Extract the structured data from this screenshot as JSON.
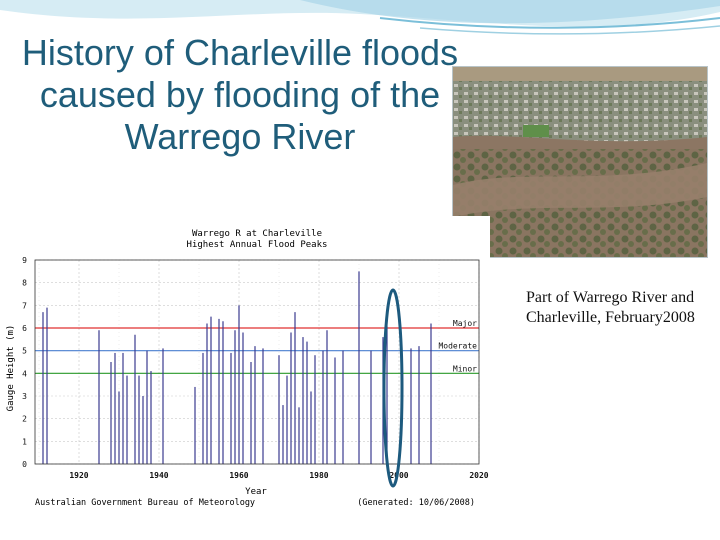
{
  "slide": {
    "title": "History of Charleville floods caused by flooding of the Warrego River",
    "caption": "Part of Warrego River and Charleville, February2008"
  },
  "colors": {
    "title": "#1f5d7a",
    "bars": "#3b3b8f",
    "major": "#e03030",
    "moderate": "#4a7fd0",
    "minor": "#2a9a2a",
    "highlight": "#1d5a7e"
  },
  "chart_data": {
    "type": "bar",
    "title": "Warrego R at Charleville",
    "subtitle": "Highest Annual Flood Peaks",
    "xlabel": "Year",
    "ylabel": "Gauge Height (m)",
    "xlim": [
      1920,
      2020
    ],
    "ylim": [
      0,
      9
    ],
    "x_ticks": [
      1920,
      1940,
      1960,
      1980,
      2000,
      2020
    ],
    "y_ticks": [
      0,
      1,
      2,
      3,
      4,
      5,
      6,
      7,
      8,
      9
    ],
    "grid": true,
    "thresholds": [
      {
        "label": "Major",
        "value": 6.0
      },
      {
        "label": "Moderate",
        "value": 5.0
      },
      {
        "label": "Minor",
        "value": 4.0
      }
    ],
    "footer_left": "Australian Government Bureau of Meteorology",
    "footer_right": "(Generated: 10/06/2008)",
    "highlight_range": [
      1997,
      2000
    ],
    "bars": [
      {
        "x": 1911,
        "y": 6.7
      },
      {
        "x": 1912,
        "y": 6.9
      },
      {
        "x": 1925,
        "y": 5.9
      },
      {
        "x": 1928,
        "y": 4.5
      },
      {
        "x": 1929,
        "y": 4.9
      },
      {
        "x": 1930,
        "y": 3.2
      },
      {
        "x": 1931,
        "y": 4.9
      },
      {
        "x": 1932,
        "y": 3.9
      },
      {
        "x": 1934,
        "y": 5.7
      },
      {
        "x": 1935,
        "y": 3.9
      },
      {
        "x": 1936,
        "y": 3.0
      },
      {
        "x": 1937,
        "y": 5.0
      },
      {
        "x": 1938,
        "y": 4.1
      },
      {
        "x": 1941,
        "y": 5.1
      },
      {
        "x": 1949,
        "y": 3.4
      },
      {
        "x": 1951,
        "y": 4.9
      },
      {
        "x": 1952,
        "y": 6.2
      },
      {
        "x": 1953,
        "y": 6.5
      },
      {
        "x": 1955,
        "y": 6.4
      },
      {
        "x": 1956,
        "y": 6.3
      },
      {
        "x": 1958,
        "y": 4.9
      },
      {
        "x": 1959,
        "y": 5.9
      },
      {
        "x": 1960,
        "y": 7.0
      },
      {
        "x": 1961,
        "y": 5.8
      },
      {
        "x": 1963,
        "y": 4.5
      },
      {
        "x": 1964,
        "y": 5.2
      },
      {
        "x": 1966,
        "y": 5.1
      },
      {
        "x": 1970,
        "y": 4.8
      },
      {
        "x": 1971,
        "y": 2.6
      },
      {
        "x": 1972,
        "y": 3.9
      },
      {
        "x": 1973,
        "y": 5.8
      },
      {
        "x": 1974,
        "y": 6.7
      },
      {
        "x": 1975,
        "y": 2.5
      },
      {
        "x": 1976,
        "y": 5.6
      },
      {
        "x": 1977,
        "y": 5.4
      },
      {
        "x": 1978,
        "y": 3.2
      },
      {
        "x": 1979,
        "y": 4.8
      },
      {
        "x": 1981,
        "y": 5.0
      },
      {
        "x": 1982,
        "y": 5.9
      },
      {
        "x": 1984,
        "y": 4.7
      },
      {
        "x": 1986,
        "y": 5.0
      },
      {
        "x": 1990,
        "y": 8.5
      },
      {
        "x": 1993,
        "y": 5.0
      },
      {
        "x": 1996,
        "y": 5.6
      },
      {
        "x": 1997,
        "y": 6.1
      },
      {
        "x": 2003,
        "y": 5.1
      },
      {
        "x": 2005,
        "y": 5.2
      },
      {
        "x": 2008,
        "y": 6.2
      }
    ]
  }
}
